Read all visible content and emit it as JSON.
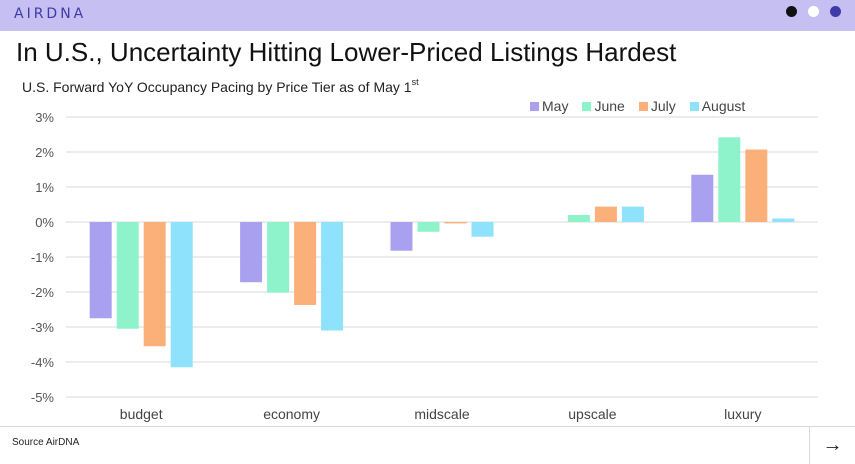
{
  "header": {
    "logo_text": "AIRDNA",
    "dot_colors": [
      "#111111",
      "#ffffff",
      "#3e3aa8"
    ]
  },
  "title": "In U.S., Uncertainty Hitting Lower-Priced Listings Hardest",
  "subtitle": "U.S. Forward YoY Occupancy Pacing by Price Tier as of May 1",
  "subtitle_sup": "st",
  "footer": {
    "source": "Source AirDNA",
    "next_icon": "arrow-right-icon",
    "next_glyph": "→"
  },
  "chart_data": {
    "type": "bar",
    "categories": [
      "budget",
      "economy",
      "midscale",
      "upscale",
      "luxury"
    ],
    "series": [
      {
        "name": "May",
        "color": "#aaa0f0",
        "values": [
          -2.75,
          -1.72,
          -0.82,
          0.0,
          1.35
        ]
      },
      {
        "name": "June",
        "color": "#8ef3cb",
        "values": [
          -3.05,
          -2.02,
          -0.28,
          0.2,
          2.42
        ]
      },
      {
        "name": "July",
        "color": "#fbb07a",
        "values": [
          -3.55,
          -2.37,
          -0.04,
          0.44,
          2.07
        ]
      },
      {
        "name": "August",
        "color": "#8fe2fb",
        "values": [
          -4.15,
          -3.1,
          -0.42,
          0.44,
          0.1
        ]
      }
    ],
    "ylim": [
      -5,
      3
    ],
    "yticks": [
      "3%",
      "2%",
      "1%",
      "0%",
      "-1%",
      "-2%",
      "-3%",
      "-4%",
      "-5%"
    ],
    "ytick_values": [
      3,
      2,
      1,
      0,
      -1,
      -2,
      -3,
      -4,
      -5
    ],
    "grid": true,
    "legend": "top-right",
    "xlabel": "",
    "ylabel": ""
  }
}
